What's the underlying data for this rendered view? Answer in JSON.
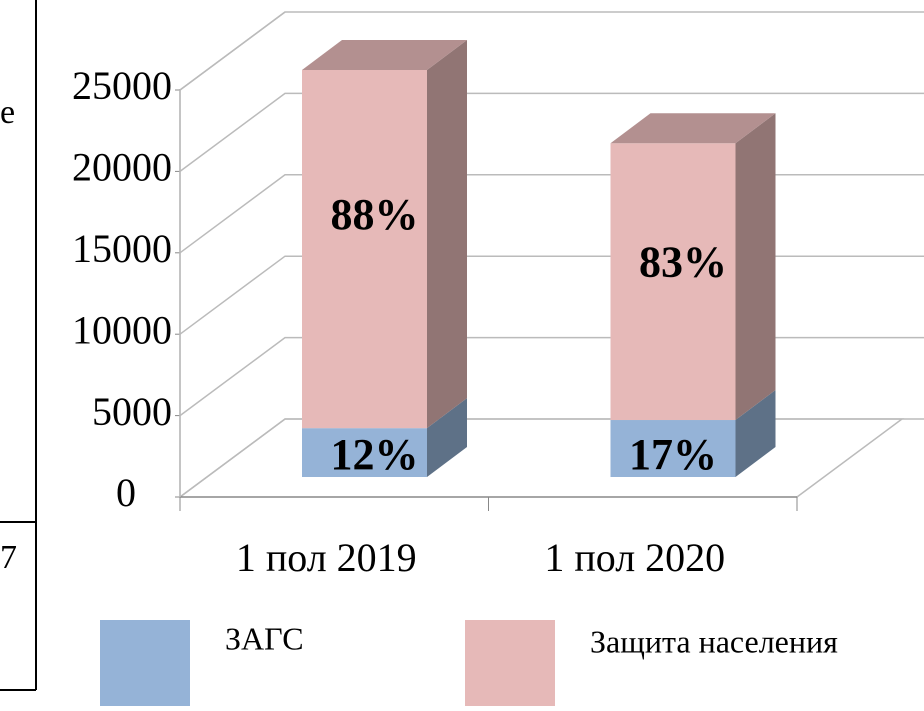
{
  "chart_data": {
    "type": "bar3d_stacked",
    "categories": [
      "1 пол 2019",
      "1 пол 2020"
    ],
    "series": [
      {
        "name": "ЗАГС",
        "color": "#95b3d7",
        "values": [
          3000,
          3500
        ],
        "data_labels": [
          "12%",
          "17%"
        ]
      },
      {
        "name": "Защита населения",
        "color": "#e6b9b8",
        "values": [
          22000,
          17000
        ],
        "data_labels": [
          "88%",
          "83%"
        ]
      }
    ],
    "ylim": [
      0,
      25000
    ],
    "yticks": [
      0,
      5000,
      10000,
      15000,
      20000,
      25000
    ],
    "grid": true,
    "left_fragments": [
      "е",
      "7"
    ]
  }
}
